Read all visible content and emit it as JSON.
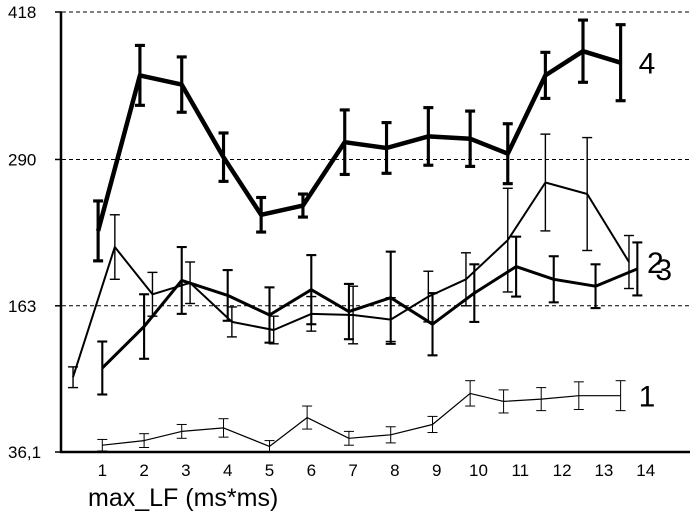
{
  "chart_data": {
    "type": "line",
    "title": "",
    "xlabel": "max_LF  (ms*ms)",
    "ylabel": "",
    "ylim": [
      36.1,
      418
    ],
    "y_tick_labels": [
      "36,1",
      "163",
      "290",
      "418"
    ],
    "y_tick_values": [
      36.1,
      163,
      290,
      418
    ],
    "x_tick_labels": [
      "1",
      "2",
      "3",
      "4",
      "5",
      "6",
      "7",
      "8",
      "9",
      "10",
      "11",
      "12",
      "13",
      "14"
    ],
    "grid": "dashed horizontal lines at 163, 290, 418",
    "series": [
      {
        "name": "1",
        "label": "1",
        "line_weight": "thin",
        "x": [
          1.0,
          2.0,
          2.9,
          3.9,
          5.0,
          5.9,
          6.9,
          7.9,
          8.9,
          9.8,
          10.6,
          11.5,
          12.4,
          13.4
        ],
        "values": [
          42,
          46,
          54,
          57,
          41,
          66,
          48,
          51,
          60,
          87,
          80,
          82,
          85,
          85
        ],
        "errors": [
          5,
          6,
          6,
          8,
          5,
          10,
          6,
          7,
          7,
          11,
          10,
          10,
          12,
          13
        ]
      },
      {
        "name": "2",
        "label": "2",
        "line_weight": "medium",
        "x": [
          0.3,
          1.3,
          2.2,
          3.1,
          4.1,
          5.1,
          6.0,
          7.0,
          7.9,
          8.8,
          9.7,
          10.7,
          11.6,
          12.6,
          13.6
        ],
        "values": [
          101,
          214,
          173,
          183,
          149,
          142,
          156,
          155,
          151,
          171,
          186,
          220,
          270,
          260,
          201
        ],
        "errors": [
          9,
          28,
          19,
          18,
          13,
          12,
          15,
          25,
          19,
          22,
          23,
          45,
          42,
          49,
          23
        ]
      },
      {
        "name": "3",
        "label": "3",
        "line_weight": "thick",
        "x": [
          1.0,
          2.0,
          2.9,
          4.0,
          5.0,
          6.0,
          6.9,
          7.9,
          8.9,
          9.9,
          10.9,
          11.8,
          12.8,
          13.8
        ],
        "values": [
          109,
          145,
          185,
          172,
          155,
          177,
          158,
          170,
          147,
          174,
          197,
          186,
          180,
          195
        ],
        "errors": [
          23,
          28,
          29,
          22,
          24,
          30,
          24,
          40,
          27,
          25,
          26,
          20,
          19,
          23
        ]
      },
      {
        "name": "4",
        "label": "4",
        "line_weight": "heaviest",
        "x": [
          0.9,
          1.9,
          2.9,
          3.9,
          4.8,
          5.8,
          6.8,
          7.8,
          8.8,
          9.8,
          10.7,
          11.6,
          12.5,
          13.4
        ],
        "values": [
          228,
          363,
          355,
          292,
          242,
          250,
          305,
          300,
          310,
          308,
          295,
          363,
          384,
          374
        ],
        "errors": [
          26,
          26,
          24,
          21,
          15,
          10,
          28,
          22,
          25,
          24,
          26,
          20,
          27,
          33
        ]
      }
    ]
  }
}
